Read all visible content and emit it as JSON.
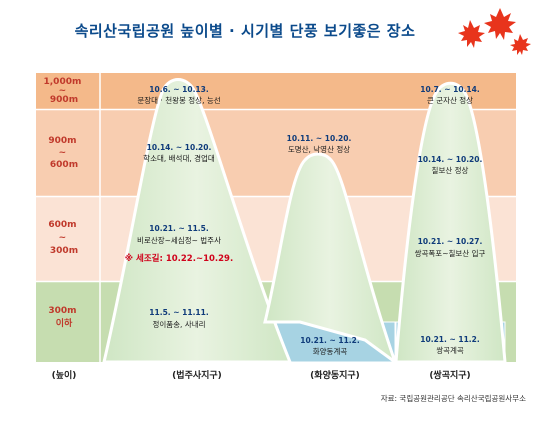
{
  "title": "속리산국립공원 높이별 · 시기별 단풍 보기좋은 장소",
  "height_bands": [
    {
      "label_lines": [
        "1,000m",
        "~",
        "900m"
      ],
      "color": "#f4b98a"
    },
    {
      "label_lines": [
        "900m",
        "~",
        "600m"
      ],
      "color": "#f8cdb0"
    },
    {
      "label_lines": [
        "600m",
        "~",
        "300m"
      ],
      "color": "#fbe3d5"
    },
    {
      "label_lines": [
        "300m",
        "이하"
      ],
      "color": "#c6ddb0"
    }
  ],
  "bottom_labels": {
    "height": "(높이)",
    "districts": [
      "(법주사지구)",
      "(화양동지구)",
      "(쌍곡지구)"
    ]
  },
  "annotations": [
    {
      "date": "10.6. ~ 10.13.",
      "place": "문장대 · 천왕봉 정상, 능선"
    },
    {
      "date": "10.14. ~ 10.20.",
      "place": "학소대, 배석대, 경업대"
    },
    {
      "date": "10.21. ~ 11.5.",
      "place": "비로산장~세심정~ 법주사"
    },
    {
      "special": "※ 세조길: 10.22.~10.29."
    },
    {
      "date": "11.5. ~ 11.11.",
      "place": "정이품송, 사내리"
    },
    {
      "date": "10.11. ~ 10.20.",
      "place": "도명산, 낙영산 정상"
    },
    {
      "date": "10.21. ~ 11.2.",
      "place": "화양동계곡"
    },
    {
      "date": "10.7. ~ 10.14.",
      "place": "큰 군자산 정상"
    },
    {
      "date": "10.14. ~ 10.20.",
      "place": "칠보산 정상"
    },
    {
      "date": "10.21. ~ 10.27.",
      "place": "쌍곡폭포~칠보산 입구"
    },
    {
      "date": "10.21. ~ 11.2.",
      "place": "쌍곡계곡"
    }
  ],
  "source": "자료:  국립공원관리공단   속리산국립공원사무소",
  "colors": {
    "mountain_fill": "#cfe3c6",
    "mountain_edge": "#ffffff",
    "valley_water": "#a7d3e3",
    "title": "#0b4a8b",
    "band_label": "#c0392b",
    "leaf": "#e8341c"
  }
}
